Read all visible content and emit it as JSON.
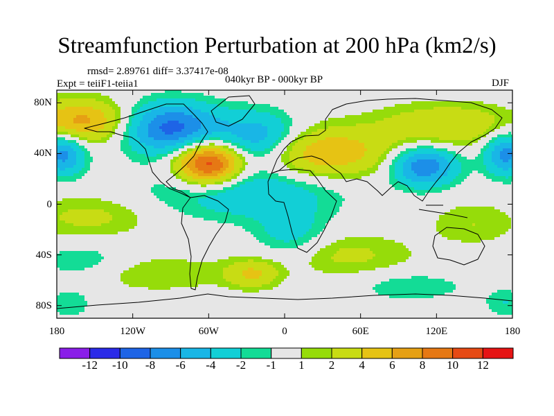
{
  "figure": {
    "title": "Streamfunction Perturbation at 200 hPa (km2/s)",
    "stats": "rmsd= 2.89761 diff= 3.37417e-08",
    "experiment": "Expt = teiiF1-teiia1",
    "period": "040kyr BP - 000kyr BP",
    "season": "DJF"
  },
  "map": {
    "lon_range": [
      -180,
      180
    ],
    "lat_range": [
      -90,
      90
    ],
    "lat_ticks": [
      {
        "lat": 80,
        "label": "80N"
      },
      {
        "lat": 40,
        "label": "40N"
      },
      {
        "lat": 0,
        "label": "0"
      },
      {
        "lat": -40,
        "label": "40S"
      },
      {
        "lat": -80,
        "label": "80S"
      }
    ],
    "lon_ticks": [
      {
        "lon": -180,
        "label": "180"
      },
      {
        "lon": -120,
        "label": "120W"
      },
      {
        "lon": -60,
        "label": "60W"
      },
      {
        "lon": 0,
        "label": "0"
      },
      {
        "lon": 60,
        "label": "60E"
      },
      {
        "lon": 120,
        "label": "120E"
      },
      {
        "lon": 180,
        "label": "180"
      }
    ],
    "anomalies": [
      {
        "lon": -60,
        "lat": 32,
        "value": 12,
        "sx": 18,
        "sy": 12
      },
      {
        "lon": -160,
        "lat": 65,
        "value": 7,
        "sx": 28,
        "sy": 12
      },
      {
        "lon": 30,
        "lat": 40,
        "value": 6,
        "sx": 38,
        "sy": 14
      },
      {
        "lon": 130,
        "lat": 62,
        "value": 4,
        "sx": 40,
        "sy": 12
      },
      {
        "lon": -90,
        "lat": 60,
        "value": -9,
        "sx": 28,
        "sy": 14
      },
      {
        "lon": -20,
        "lat": 52,
        "value": -6,
        "sx": 22,
        "sy": 14
      },
      {
        "lon": 110,
        "lat": 30,
        "value": -8,
        "sx": 18,
        "sy": 11
      },
      {
        "lon": -175,
        "lat": 40,
        "value": -7,
        "sx": 12,
        "sy": 12
      },
      {
        "lon": 175,
        "lat": 40,
        "value": -7,
        "sx": 12,
        "sy": 12
      },
      {
        "lon": -30,
        "lat": 10,
        "value": -4,
        "sx": 50,
        "sy": 15
      },
      {
        "lon": 5,
        "lat": -25,
        "value": -3,
        "sx": 20,
        "sy": 15
      },
      {
        "lon": -155,
        "lat": -10,
        "value": 2.5,
        "sx": 35,
        "sy": 12
      },
      {
        "lon": 45,
        "lat": -40,
        "value": 2.5,
        "sx": 40,
        "sy": 12
      },
      {
        "lon": 150,
        "lat": -15,
        "value": 2,
        "sx": 25,
        "sy": 12
      },
      {
        "lon": -100,
        "lat": -55,
        "value": 2,
        "sx": 40,
        "sy": 10
      },
      {
        "lon": -25,
        "lat": -55,
        "value": 4,
        "sx": 15,
        "sy": 8
      },
      {
        "lon": -160,
        "lat": -45,
        "value": -2,
        "sx": 25,
        "sy": 10
      },
      {
        "lon": 100,
        "lat": -65,
        "value": -2,
        "sx": 30,
        "sy": 8
      },
      {
        "lon": 175,
        "lat": -78,
        "value": -2,
        "sx": 12,
        "sy": 8
      },
      {
        "lon": -170,
        "lat": -78,
        "value": -2,
        "sx": 12,
        "sy": 8
      }
    ]
  },
  "colorbar": {
    "levels": [
      -12,
      -10,
      -8,
      -6,
      -4,
      -2,
      -1,
      1,
      2,
      4,
      6,
      8,
      10,
      12
    ],
    "labels": [
      "-12",
      "-10",
      "-8",
      "-6",
      "-4",
      "-2",
      "-1",
      "1",
      "2",
      "4",
      "6",
      "8",
      "10",
      "12"
    ],
    "colors": [
      "#8a1ee8",
      "#2a2ae8",
      "#1e64e6",
      "#1c8fe8",
      "#19b6e6",
      "#12cfd6",
      "#13dc96",
      "#e6e6e6",
      "#96dc0a",
      "#c8dc14",
      "#e6c314",
      "#e6a014",
      "#e67814",
      "#e64a14",
      "#e61414"
    ]
  }
}
